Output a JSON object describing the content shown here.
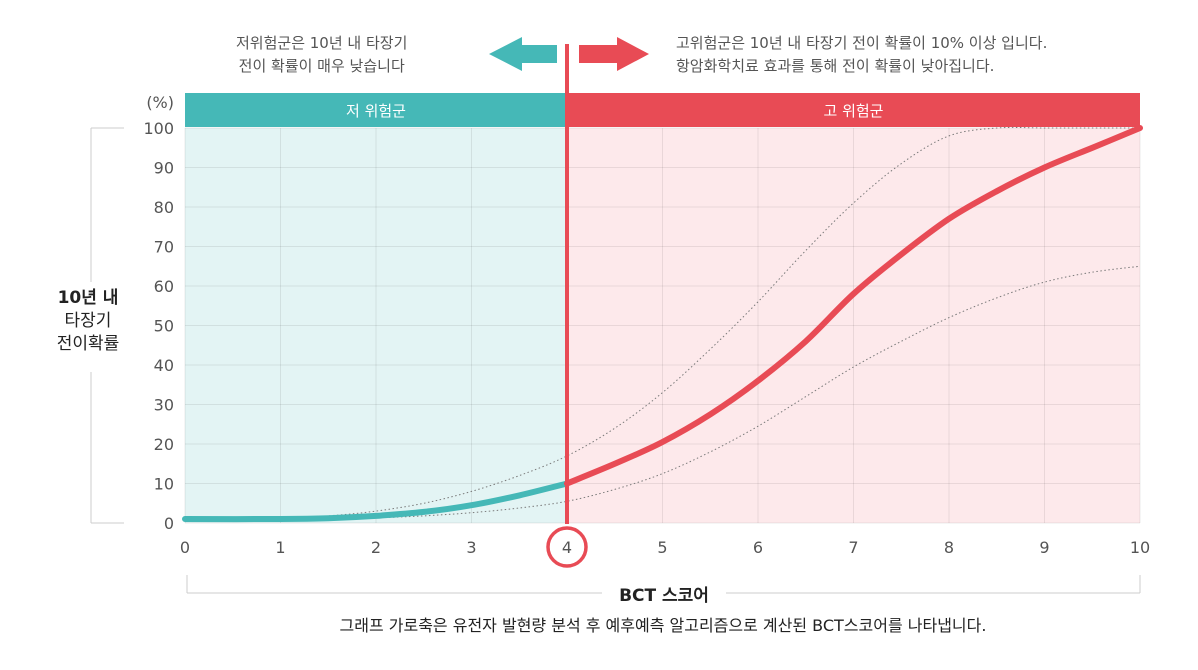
{
  "notes": {
    "left_line1": "저위험군은 10년 내 타장기",
    "left_line2": "전이 확률이 매우 낮습니다",
    "right_line1": "고위험군은 10년 내 타장기 전이 확률이 10% 이상 입니다.",
    "right_line2": "항암화학치료 효과를 통해 전이 확률이 낮아집니다."
  },
  "zones": {
    "low_label": "저 위험군",
    "high_label": "고 위험군"
  },
  "y_axis": {
    "unit": "(%)",
    "label_line1": "10년 내",
    "label_line2": "타장기",
    "label_line3": "전이확률"
  },
  "x_axis": {
    "title": "BCT 스코어"
  },
  "footnote": "그래프 가로축은 유전자 발현량 분석 후 예후예측 알고리즘으로 계산된 BCT스코어를 나타냅니다.",
  "colors": {
    "low": "#45b8b7",
    "high": "#e84b55",
    "low_bg": "#e3f4f4",
    "high_bg": "#fde9eb"
  },
  "chart_data": {
    "type": "line",
    "xlim": [
      0,
      10
    ],
    "ylim": [
      0,
      100
    ],
    "x_ticks": [
      "0",
      "1",
      "2",
      "3",
      "4",
      "5",
      "6",
      "7",
      "8",
      "9",
      "10"
    ],
    "y_ticks": [
      "0",
      "10",
      "20",
      "30",
      "40",
      "50",
      "60",
      "70",
      "80",
      "90",
      "100"
    ],
    "threshold_x": 4,
    "grid": true,
    "series": [
      {
        "role": "main",
        "x": [
          0,
          1,
          1.5,
          2,
          2.5,
          3,
          3.5,
          4,
          4.5,
          5,
          5.5,
          6,
          6.5,
          7,
          7.5,
          8,
          8.5,
          9,
          9.5,
          10
        ],
        "y": [
          1,
          1,
          1.2,
          1.8,
          2.8,
          4.5,
          7,
          10,
          15,
          20.5,
          27.5,
          36,
          46,
          58,
          68,
          77,
          84,
          90,
          95,
          100
        ]
      },
      {
        "role": "upper-bound",
        "style": "dotted",
        "x": [
          0,
          1,
          1.5,
          2,
          2.5,
          3,
          3.5,
          4,
          4.5,
          5,
          5.5,
          6,
          6.5,
          7,
          7.5,
          8,
          8.5,
          9,
          9.5,
          10
        ],
        "y": [
          1,
          1.2,
          1.8,
          3,
          5,
          8,
          12,
          17,
          24,
          33,
          44,
          56,
          69,
          81,
          91,
          98,
          100,
          100,
          100,
          100
        ]
      },
      {
        "role": "lower-bound",
        "style": "dotted",
        "x": [
          0,
          1,
          1.5,
          2,
          2.5,
          3,
          3.5,
          4,
          4.5,
          5,
          5.5,
          6,
          6.5,
          7,
          7.5,
          8,
          8.5,
          9,
          9.5,
          10
        ],
        "y": [
          1,
          1,
          1,
          1.3,
          1.8,
          2.6,
          3.8,
          5.5,
          8.5,
          12.5,
          18,
          24.5,
          32,
          39.5,
          46,
          52,
          57,
          61,
          63.5,
          65
        ]
      }
    ]
  }
}
